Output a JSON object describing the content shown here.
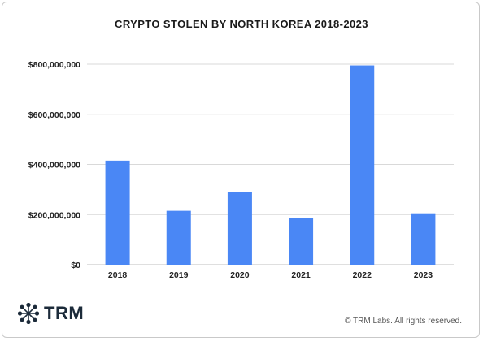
{
  "chart_data": {
    "type": "bar",
    "title": "CRYPTO STOLEN BY NORTH KOREA 2018-2023",
    "categories": [
      "2018",
      "2019",
      "2020",
      "2021",
      "2022",
      "2023"
    ],
    "values": [
      415000000,
      215000000,
      290000000,
      185000000,
      795000000,
      205000000
    ],
    "yticks": [
      "$0",
      "$200,000,000",
      "$400,000,000",
      "$600,000,000",
      "$800,000,000"
    ],
    "ytick_values": [
      0,
      200000000,
      400000000,
      600000000,
      800000000
    ],
    "ylim": [
      0,
      800000000
    ],
    "grid": true,
    "bar_color": "#4a87f5"
  },
  "branding": {
    "logo_text": "TRM",
    "logo_icon": "snowflake-burst-icon",
    "logo_color": "#1c2b3a"
  },
  "footer": {
    "copyright": "© TRM Labs. All rights reserved."
  }
}
